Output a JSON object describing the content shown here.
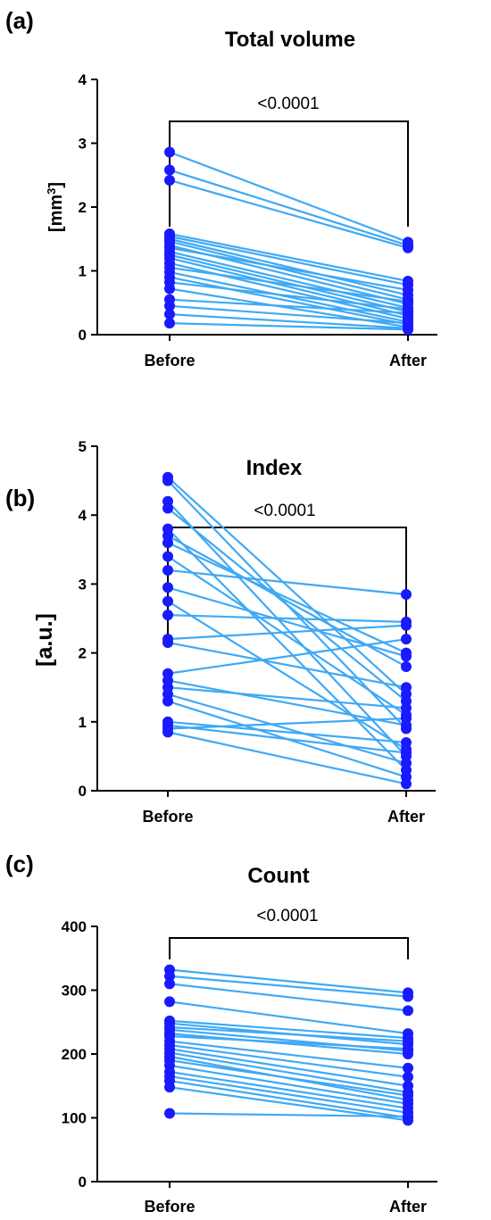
{
  "figure": {
    "panel_a_label": "(a)",
    "panel_b_label": "(b)",
    "panel_c_label": "(c)"
  },
  "colors": {
    "line": "#3fa9f5",
    "point": "#1a1aff",
    "axis": "#000000"
  },
  "chart_data": [
    {
      "type": "line",
      "panel": "(a)",
      "title": "Total volume",
      "ylabel_main": "[mm",
      "ylabel_sup": "3",
      "ylabel_end": "]",
      "categories": [
        "Before",
        "After"
      ],
      "ylim": [
        0,
        4
      ],
      "yticks": [
        "0",
        "1",
        "2",
        "3",
        "4"
      ],
      "significance": "<0.0001",
      "pairs": [
        [
          2.86,
          1.45
        ],
        [
          2.58,
          1.4
        ],
        [
          2.42,
          1.36
        ],
        [
          1.58,
          0.84
        ],
        [
          1.54,
          0.78
        ],
        [
          1.5,
          0.62
        ],
        [
          1.46,
          0.55
        ],
        [
          1.4,
          0.48
        ],
        [
          1.36,
          0.7
        ],
        [
          1.3,
          0.42
        ],
        [
          1.25,
          0.36
        ],
        [
          1.2,
          0.3
        ],
        [
          1.12,
          0.25
        ],
        [
          1.05,
          0.52
        ],
        [
          0.98,
          0.2
        ],
        [
          0.9,
          0.16
        ],
        [
          0.82,
          0.4
        ],
        [
          0.72,
          0.12
        ],
        [
          0.55,
          0.34
        ],
        [
          0.45,
          0.18
        ],
        [
          0.32,
          0.1
        ],
        [
          0.18,
          0.08
        ]
      ]
    },
    {
      "type": "line",
      "panel": "(b)",
      "title": "Index",
      "ylabel": "[a.u.]",
      "categories": [
        "Before",
        "After"
      ],
      "ylim": [
        0,
        5
      ],
      "yticks": [
        "0",
        "1",
        "2",
        "3",
        "4",
        "5"
      ],
      "significance": "<0.0001",
      "pairs": [
        [
          4.55,
          1.4
        ],
        [
          4.5,
          0.9
        ],
        [
          4.2,
          0.5
        ],
        [
          4.1,
          1.3
        ],
        [
          3.8,
          0.3
        ],
        [
          3.7,
          1.8
        ],
        [
          3.6,
          2.0
        ],
        [
          3.4,
          1.1
        ],
        [
          3.2,
          2.85
        ],
        [
          2.95,
          1.95
        ],
        [
          2.75,
          0.6
        ],
        [
          2.55,
          2.45
        ],
        [
          2.2,
          2.4
        ],
        [
          2.15,
          1.5
        ],
        [
          1.7,
          2.2
        ],
        [
          1.6,
          0.95
        ],
        [
          1.5,
          1.2
        ],
        [
          1.4,
          0.4
        ],
        [
          1.3,
          0.2
        ],
        [
          1.0,
          0.7
        ],
        [
          0.95,
          0.55
        ],
        [
          0.9,
          1.05
        ],
        [
          0.85,
          0.1
        ]
      ]
    },
    {
      "type": "line",
      "panel": "(c)",
      "title": "Count",
      "ylabel": "",
      "categories": [
        "Before",
        "After"
      ],
      "ylim": [
        0,
        400
      ],
      "yticks": [
        "0",
        "100",
        "200",
        "300",
        "400"
      ],
      "significance": "<0.0001",
      "pairs": [
        [
          332,
          296
        ],
        [
          322,
          290
        ],
        [
          310,
          268
        ],
        [
          282,
          232
        ],
        [
          252,
          225
        ],
        [
          248,
          215
        ],
        [
          242,
          220
        ],
        [
          238,
          205
        ],
        [
          232,
          200
        ],
        [
          228,
          208
        ],
        [
          220,
          178
        ],
        [
          214,
          164
        ],
        [
          208,
          150
        ],
        [
          202,
          140
        ],
        [
          196,
          128
        ],
        [
          190,
          135
        ],
        [
          182,
          122
        ],
        [
          172,
          115
        ],
        [
          165,
          108
        ],
        [
          158,
          100
        ],
        [
          148,
          96
        ],
        [
          107,
          102
        ]
      ]
    }
  ]
}
